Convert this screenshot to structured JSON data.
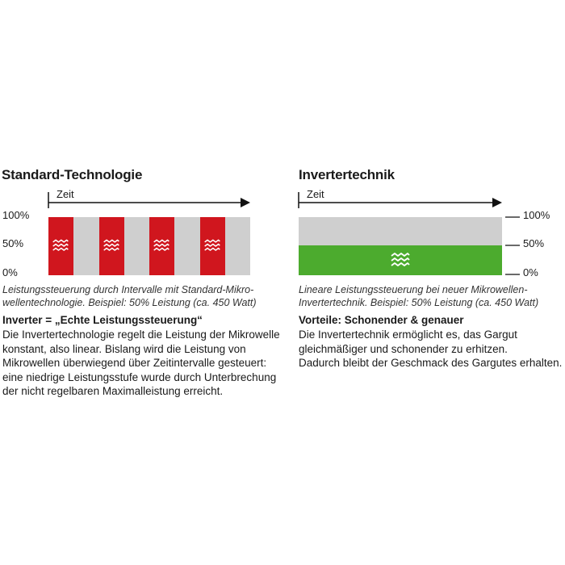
{
  "standard": {
    "title": "Standard-Technologie",
    "time_label": "Zeit",
    "y_labels": [
      "100%",
      "50%",
      "0%"
    ],
    "pulse_count": 4,
    "pulse_icon": "microwave-wave-icon",
    "caption": [
      "Leistungssteuerung durch Intervalle mit Standard-Mikro-",
      "wellentechnologie. Beispiel: 50% Leistung (ca. 450 Watt)"
    ],
    "subheading": "Inverter = „Echte Leistungssteuerung“",
    "body": [
      "Die Invertertechnologie regelt die Leistung der Mikrowelle",
      "konstant, also linear. Bislang wird die Leistung von",
      "Mikrowellen überwiegend über Zeitintervalle gesteuert:",
      "eine niedrige Leistungsstufe wurde durch Unterbrechung",
      "der nicht regelbaren Maximalleistung erreicht."
    ]
  },
  "inverter": {
    "title": "Invertertechnik",
    "time_label": "Zeit",
    "y_labels": [
      "100%",
      "50%",
      "0%"
    ],
    "power_level": 0.5,
    "caption": [
      "Lineare Leistungssteuerung bei neuer Mikrowellen-",
      "Invertertechnik. Beispiel: 50% Leistung (ca. 450 Watt)"
    ],
    "subheading": "Vorteile: Schonender & genauer",
    "body": [
      "Die Invertertechnik ermöglicht es, das Gargut",
      "gleichmäßiger und schonender zu erhitzen.",
      "Dadurch bleibt der Geschmack des Gargutes erhalten."
    ]
  },
  "colors": {
    "pulse": "#d0161e",
    "inverter_bar": "#4cab2e",
    "background_bar": "#cfcfcf"
  }
}
